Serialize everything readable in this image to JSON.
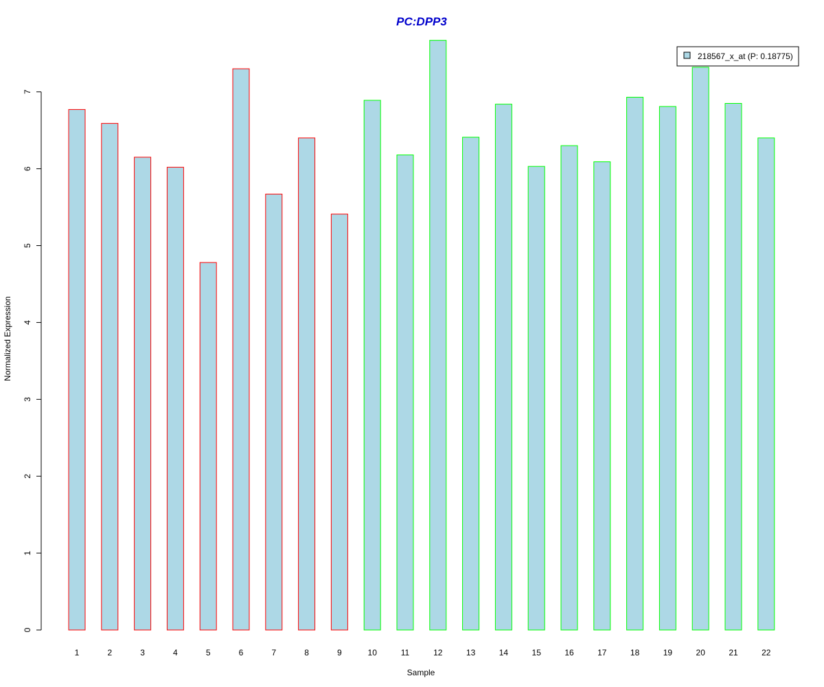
{
  "chart_data": {
    "type": "bar",
    "title": "PC:DPP3",
    "xlabel": "Sample",
    "ylabel": "Normalized Expression",
    "categories": [
      "1",
      "2",
      "3",
      "4",
      "5",
      "6",
      "7",
      "8",
      "9",
      "10",
      "11",
      "12",
      "13",
      "14",
      "15",
      "16",
      "17",
      "18",
      "19",
      "20",
      "21",
      "22"
    ],
    "series": [
      {
        "name": "218567_x_at (P: 0.18775)",
        "values": [
          6.77,
          6.59,
          6.15,
          6.02,
          4.78,
          7.3,
          5.67,
          6.4,
          5.41,
          6.89,
          6.18,
          7.67,
          6.41,
          6.84,
          6.03,
          6.3,
          6.09,
          6.93,
          6.81,
          7.32,
          6.85,
          6.4
        ]
      }
    ],
    "yticks": [
      0,
      1,
      2,
      3,
      4,
      5,
      6,
      7
    ],
    "ylim": [
      0,
      7.67
    ],
    "grid": false,
    "legend": "top-right",
    "colors": {
      "bar_fill": "#add8e6",
      "group_a_border": "#ff0000",
      "group_b_border": "#00ff00",
      "title": "#0000cc"
    },
    "group_a_count": 9
  }
}
